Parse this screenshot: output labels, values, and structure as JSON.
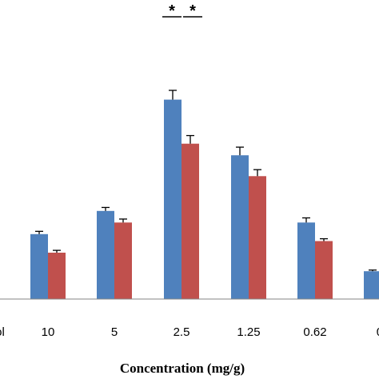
{
  "chart_data": {
    "type": "bar",
    "xlabel": "Concentration (mg/g)",
    "ylabel": "",
    "title": "",
    "categories": [
      "ol",
      "10",
      "5",
      "2.5",
      "1.25",
      "0.62",
      "0."
    ],
    "series": [
      {
        "color": "#4f81bd",
        "values": [
          null,
          28,
          38,
          86,
          62,
          33,
          12
        ],
        "errors": [
          null,
          1.2,
          1.5,
          4.0,
          3.5,
          2.0,
          0.5
        ]
      },
      {
        "color": "#c0504d",
        "values": [
          null,
          20,
          33,
          67,
          53,
          25,
          null
        ],
        "errors": [
          null,
          1.0,
          1.5,
          3.5,
          2.8,
          1.0,
          null
        ]
      }
    ],
    "ylim": [
      0,
      100
    ],
    "grid": false,
    "significance": {
      "category": "2.5",
      "labels": [
        "*",
        "*"
      ]
    }
  }
}
